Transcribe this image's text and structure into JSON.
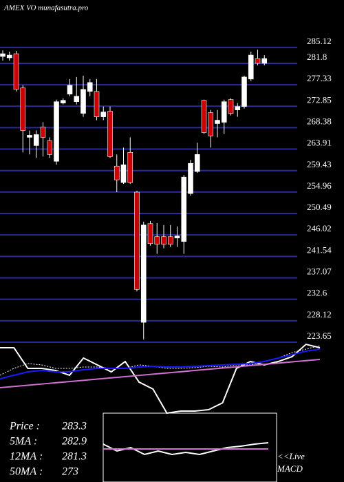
{
  "chart_data": [
    {
      "type": "candlestick",
      "title": "AMEX  VO munafasutra.pro",
      "open": [
        283.23,
        282.94,
        283.8,
        276.66,
        266.37,
        264.65,
        268.51,
        265.65,
        261.37,
        273.51,
        275.37,
        273.8,
        271.37,
        275.94,
        275.94,
        270.65,
        271.8,
        260.37,
        256.94,
        263.23,
        254.94,
        227.8,
        248.37,
        245.65,
        245.65,
        245.65,
        245.37,
        244.65,
        254.65,
        259.23,
        274.08,
        271.51,
        269.23,
        269.51,
        274.23,
        272.08,
        272.8,
        278.51,
        282.8,
        281.8
      ],
      "high": [
        284.51,
        284.23,
        284.37,
        277.23,
        267.8,
        267.8,
        269.51,
        266.37,
        274.23,
        274.51,
        278.51,
        278.94,
        279.23,
        278.51,
        278.51,
        272.8,
        272.8,
        262.8,
        264.23,
        266.37,
        255.23,
        248.8,
        248.94,
        248.51,
        248.08,
        248.08,
        247.8,
        258.51,
        261.65,
        265.23,
        274.23,
        272.08,
        272.08,
        274.23,
        274.51,
        273.51,
        279.23,
        284.23,
        284.65,
        283.51
      ],
      "low": [
        282.37,
        282.37,
        275.94,
        263.23,
        262.8,
        262.08,
        262.37,
        262.08,
        260.65,
        273.23,
        274.94,
        273.23,
        270.65,
        274.94,
        269.94,
        269.94,
        262.08,
        254.94,
        256.65,
        256.65,
        234.23,
        224.23,
        243.8,
        242.08,
        243.23,
        243.51,
        243.51,
        242.08,
        254.23,
        258.94,
        267.08,
        264.23,
        266.37,
        267.08,
        270.94,
        270.65,
        272.37,
        278.08,
        281.37,
        281.37
      ],
      "close": [
        283.8,
        283.51,
        276.37,
        267.8,
        266.8,
        266.94,
        266.37,
        262.8,
        273.8,
        274.08,
        277.23,
        274.94,
        276.37,
        277.8,
        270.65,
        271.65,
        262.37,
        257.51,
        260.65,
        256.94,
        234.65,
        248.08,
        244.23,
        244.08,
        244.08,
        244.08,
        245.8,
        258.08,
        260.94,
        262.8,
        267.37,
        266.65,
        269.94,
        273.8,
        271.37,
        272.8,
        278.94,
        283.51,
        281.8,
        282.8
      ],
      "up_color": "#ffffff",
      "down_color": "#cc0000",
      "grid": true,
      "grid_color": "#2a2a9a",
      "ylim": [
        223.65,
        295
      ],
      "yticks": [
        285.12,
        281.8,
        277.33,
        272.85,
        268.38,
        263.91,
        259.43,
        254.96,
        250.49,
        246.02,
        241.54,
        237.07,
        232.6,
        228.12,
        223.65
      ],
      "stats": [
        {
          "label": "Price   :",
          "value": 283.3
        },
        {
          "label": "5MA :",
          "value": 282.9
        },
        {
          "label": "12MA :",
          "value": 281.3
        },
        {
          "label": "50MA :",
          "value": 273
        }
      ]
    },
    {
      "type": "line",
      "ylim": [
        0,
        100
      ],
      "x": [
        0,
        1,
        2,
        3,
        4,
        5,
        6,
        7,
        8,
        9,
        10,
        11,
        12,
        13,
        14,
        15,
        16,
        17,
        18,
        19,
        20,
        21,
        22,
        23
      ],
      "series": [
        {
          "color": "#ffffff",
          "dash": "none",
          "values": [
            90.5,
            90.5,
            61.9,
            61.9,
            59.0,
            52.4,
            76.2,
            66.7,
            57.1,
            71.4,
            42.9,
            33.3,
            0,
            2.9,
            2.9,
            4.8,
            14.3,
            61.9,
            71.4,
            66.7,
            71.4,
            78.1,
            95.2,
            90.5
          ]
        },
        {
          "color": "#ffffff",
          "dash": "2,2",
          "values": [
            52.4,
            61.9,
            68.6,
            66.7,
            61.9,
            61.9,
            63.8,
            63.8,
            61.9,
            61.9,
            66.7,
            64.8,
            61.9,
            61.9,
            62.9,
            64.8,
            63.8,
            66.7,
            66.7,
            71.4,
            76.2,
            83.8,
            88.6,
            93.3
          ]
        },
        {
          "color": "#1a1aff",
          "dash": "none",
          "values": [
            47.6,
            52.4,
            57.1,
            59.0,
            57.1,
            57.1,
            60.0,
            61.9,
            61.9,
            61.9,
            63.8,
            64.8,
            63.8,
            63.8,
            64.8,
            65.7,
            66.7,
            67.6,
            68.6,
            71.4,
            76.2,
            81.0,
            85.7,
            88.6
          ]
        },
        {
          "color": "#d070d0",
          "dash": "none",
          "values": [
            35.2,
            36.9,
            38.6,
            40.3,
            42.0,
            43.7,
            45.4,
            47.1,
            48.8,
            50.5,
            52.2,
            53.9,
            55.6,
            57.3,
            59.0,
            60.7,
            62.4,
            64.1,
            65.8,
            67.5,
            69.2,
            70.9,
            72.6,
            74.3
          ]
        }
      ]
    },
    {
      "type": "line",
      "ylim": [
        0,
        100
      ],
      "x": [
        0,
        1,
        2,
        3,
        4,
        5,
        6,
        7,
        8,
        9,
        10,
        11,
        12
      ],
      "labels": [
        "<<Live",
        "MACD"
      ],
      "series": [
        {
          "color": "#ffffff",
          "dash": "none",
          "values": [
            55,
            45,
            50,
            40,
            45,
            40,
            43,
            40,
            45,
            50,
            52,
            55,
            57
          ]
        },
        {
          "color": "#d070d0",
          "dash": "none",
          "values": [
            48,
            48,
            48,
            48,
            48,
            48,
            48,
            48,
            48,
            48,
            48,
            48,
            48
          ]
        }
      ]
    }
  ]
}
